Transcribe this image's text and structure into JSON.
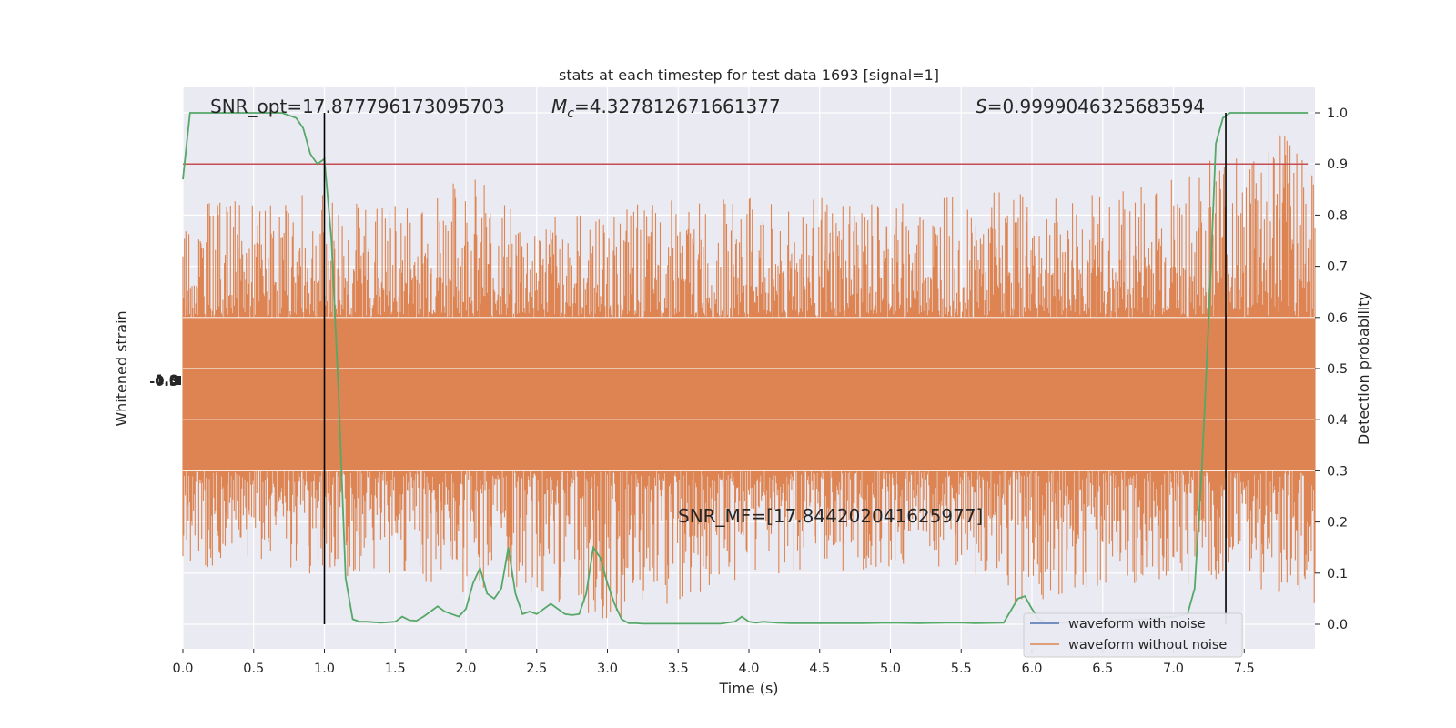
{
  "chart_data": {
    "type": "line",
    "title": "stats at each timestep for test data 1693 [signal=1]",
    "xlabel": "Time (s)",
    "ylabel_left": "Whitened strain",
    "ylabel_right": "Detection probability",
    "xlim": [
      0.0,
      8.0
    ],
    "ylim_right": [
      -0.05,
      1.05
    ],
    "x_ticks": [
      "0.0",
      "0.5",
      "1.0",
      "1.5",
      "2.0",
      "2.5",
      "3.0",
      "3.5",
      "4.0",
      "4.5",
      "5.0",
      "5.5",
      "6.0",
      "6.5",
      "7.0",
      "7.5"
    ],
    "y_ticks_right": [
      "0.0",
      "0.1",
      "0.2",
      "0.3",
      "0.4",
      "0.5",
      "0.6",
      "0.7",
      "0.8",
      "0.9",
      "1.0"
    ],
    "grid": true,
    "legend_position": "lower-right",
    "annotations": {
      "snr_opt": "SNR_opt=17.877796173095703",
      "mc_symbol": "M",
      "mc_sub": "c",
      "mc_value": "=4.327812671661377",
      "s_symbol": "S",
      "s_value": "=0.9999046325683594",
      "snr_mf": "SNR_MF=[17.844202041625977]"
    },
    "threshold": 0.9,
    "vlines": [
      1.0,
      7.37
    ],
    "series": [
      {
        "name": "waveform with noise",
        "color": "#4c72b0",
        "role": "strain"
      },
      {
        "name": "waveform without noise",
        "color": "#dd8452",
        "role": "strain",
        "envelope": {
          "x": [
            0.0,
            0.5,
            1.0,
            1.5,
            2.0,
            2.5,
            3.0,
            3.5,
            4.0,
            4.5,
            5.0,
            5.5,
            6.0,
            6.5,
            7.0,
            7.5,
            8.0
          ],
          "upper_prob": [
            0.82,
            0.83,
            0.85,
            0.83,
            0.88,
            0.8,
            0.82,
            0.83,
            0.84,
            0.84,
            0.82,
            0.84,
            0.85,
            0.84,
            0.87,
            0.95,
            1.0
          ],
          "lower_prob": [
            0.1,
            0.13,
            0.08,
            0.1,
            0.06,
            0.06,
            0.0,
            0.04,
            0.09,
            0.1,
            0.11,
            0.1,
            0.02,
            0.08,
            0.08,
            0.06,
            0.02
          ]
        }
      },
      {
        "name": "detection probability",
        "color": "#55a868",
        "role": "probability",
        "x": [
          0.0,
          0.05,
          0.1,
          0.2,
          0.3,
          0.4,
          0.5,
          0.6,
          0.7,
          0.8,
          0.85,
          0.9,
          0.95,
          1.0,
          1.05,
          1.1,
          1.15,
          1.2,
          1.25,
          1.3,
          1.4,
          1.5,
          1.55,
          1.6,
          1.65,
          1.7,
          1.75,
          1.8,
          1.85,
          1.9,
          1.95,
          2.0,
          2.05,
          2.1,
          2.15,
          2.2,
          2.25,
          2.3,
          2.35,
          2.4,
          2.45,
          2.5,
          2.6,
          2.7,
          2.75,
          2.8,
          2.85,
          2.9,
          2.95,
          3.0,
          3.05,
          3.1,
          3.15,
          3.2,
          3.25,
          3.3,
          3.4,
          3.5,
          3.6,
          3.7,
          3.8,
          3.9,
          3.95,
          4.0,
          4.05,
          4.1,
          4.2,
          4.3,
          4.4,
          4.5,
          4.6,
          4.8,
          5.0,
          5.2,
          5.4,
          5.5,
          5.6,
          5.8,
          5.9,
          5.95,
          6.0,
          6.05,
          6.1,
          6.15,
          6.2,
          6.4,
          6.6,
          6.8,
          7.0,
          7.1,
          7.15,
          7.2,
          7.25,
          7.3,
          7.35,
          7.4,
          7.45,
          7.5,
          7.55,
          7.6,
          7.7,
          7.8,
          7.95
        ],
        "y": [
          0.87,
          1.0,
          1.0,
          1.0,
          1.0,
          1.0,
          1.0,
          1.0,
          1.0,
          0.99,
          0.97,
          0.92,
          0.9,
          0.91,
          0.75,
          0.45,
          0.09,
          0.01,
          0.005,
          0.005,
          0.003,
          0.005,
          0.015,
          0.008,
          0.007,
          0.015,
          0.025,
          0.035,
          0.025,
          0.02,
          0.015,
          0.03,
          0.08,
          0.11,
          0.06,
          0.05,
          0.07,
          0.15,
          0.06,
          0.02,
          0.025,
          0.02,
          0.04,
          0.02,
          0.018,
          0.02,
          0.06,
          0.15,
          0.13,
          0.08,
          0.04,
          0.01,
          0.002,
          0.002,
          0.001,
          0.001,
          0.001,
          0.001,
          0.001,
          0.001,
          0.001,
          0.005,
          0.015,
          0.005,
          0.003,
          0.005,
          0.003,
          0.002,
          0.002,
          0.002,
          0.002,
          0.002,
          0.003,
          0.002,
          0.003,
          0.003,
          0.002,
          0.003,
          0.05,
          0.055,
          0.03,
          0.01,
          0.003,
          0.003,
          0.003,
          0.005,
          0.007,
          0.01,
          0.015,
          0.02,
          0.07,
          0.3,
          0.6,
          0.94,
          0.99,
          1.0,
          1.0,
          1.0,
          1.0,
          1.0,
          1.0,
          1.0,
          1.0
        ]
      }
    ]
  }
}
